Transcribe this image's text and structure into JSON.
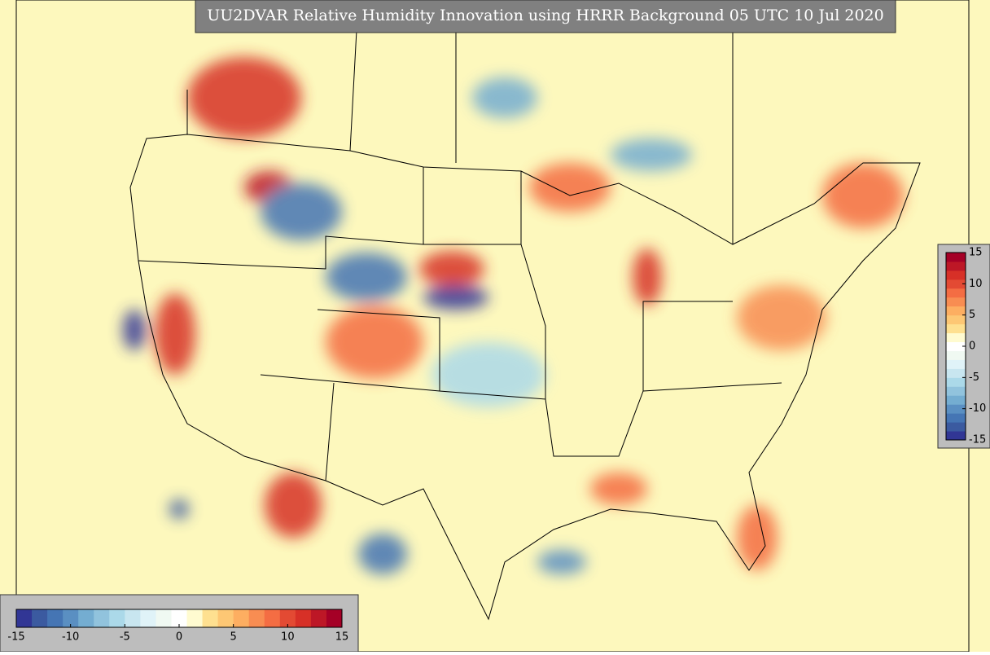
{
  "title": "UU2DVAR Relative Humidity Innovation using HRRR Background 05 UTC 10 Jul 2020",
  "colorbar": {
    "range": [
      -15,
      15
    ],
    "ticks": [
      -15,
      -10,
      -5,
      0,
      5,
      10,
      15
    ],
    "colors": [
      "#313695",
      "#3b5aa0",
      "#4575b4",
      "#5a8fc2",
      "#74add1",
      "#91c3dd",
      "#abd9e9",
      "#c8e6f0",
      "#e0f3f8",
      "#f0f9f2",
      "#ffffff",
      "#fffbd0",
      "#fee090",
      "#fdc774",
      "#fdae61",
      "#f88d52",
      "#f46d43",
      "#e34a33",
      "#d73027",
      "#bd1726",
      "#a50026"
    ]
  }
}
